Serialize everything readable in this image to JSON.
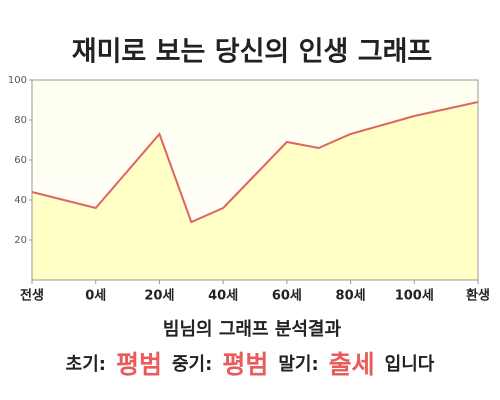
{
  "chart_data": {
    "type": "area",
    "title": "재미로 보는 당신의 인생 그래프",
    "x": [
      -20,
      0,
      20,
      30,
      40,
      60,
      70,
      80,
      100,
      120
    ],
    "values": [
      44,
      36,
      73,
      29,
      36,
      69,
      66,
      73,
      82,
      89
    ],
    "color": "#e06464",
    "fill_color": "#ffffc6",
    "xlim": [
      -20,
      120
    ],
    "xticks": [
      {
        "value": -20,
        "label": "전생"
      },
      {
        "value": 0,
        "label": "0세"
      },
      {
        "value": 20,
        "label": "20세"
      },
      {
        "value": 40,
        "label": "40세"
      },
      {
        "value": 60,
        "label": "60세"
      },
      {
        "value": 80,
        "label": "80세"
      },
      {
        "value": 100,
        "label": "100세"
      },
      {
        "value": 120,
        "label": "환생"
      }
    ],
    "ylim": [
      0,
      100
    ],
    "yticks": [
      20,
      40,
      60,
      80,
      100
    ],
    "grid": false,
    "annotations": [
      "빔님의 그래프 분석결과"
    ],
    "summary": [
      {
        "text": "초기:"
      },
      {
        "text": "평범",
        "highlight": true
      },
      {
        "text": "중기:"
      },
      {
        "text": "평범",
        "highlight": true
      },
      {
        "text": "말기:"
      },
      {
        "text": "출세",
        "highlight": true
      },
      {
        "text": "입니다"
      }
    ],
    "highlight_color": "#e85c5c"
  }
}
